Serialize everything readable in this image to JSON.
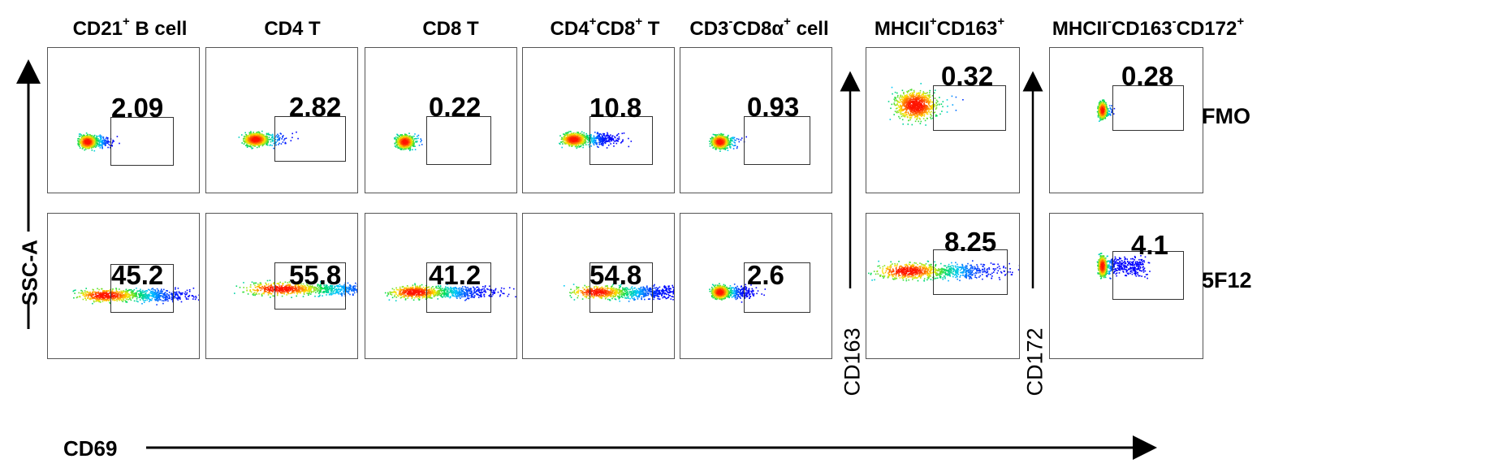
{
  "chart_data": {
    "type": "flow-cytometry-grid",
    "x_axis_label": "CD69",
    "y_axis_label": "SSC-A",
    "panel_y_axis_labels": [
      "CD163",
      "CD172"
    ],
    "columns": [
      {
        "name": "CD21⁺ B cell",
        "base": "CD21",
        "sup": "+",
        "tail": " B cell"
      },
      {
        "name": "CD4 T",
        "base": "CD4 T",
        "sup": "",
        "tail": ""
      },
      {
        "name": "CD8 T",
        "base": "CD8 T",
        "sup": "",
        "tail": ""
      },
      {
        "name": "CD4⁺CD8⁺ T",
        "base": "CD4",
        "sup": "+",
        "tail": "CD8",
        "sup2": "+",
        "tail2": " T"
      },
      {
        "name": "CD3⁻CD8α⁺ cell",
        "base": "CD3",
        "sup": "-",
        "tail": "CD8α",
        "sup2": "+",
        "tail2": " cell"
      },
      {
        "name": "MHCII⁺CD163⁺",
        "base": "MHCII",
        "sup": "+",
        "tail": "CD163",
        "sup2": "+",
        "tail2": ""
      },
      {
        "name": "MHCII⁻CD163⁻CD172⁺",
        "base": "MHCII",
        "sup": "-",
        "tail": "CD163",
        "sup2": "-",
        "tail2": "CD172",
        "sup3": "+"
      }
    ],
    "rows": [
      "FMO",
      "5F12"
    ],
    "values": [
      [
        "2.09",
        "2.82",
        "0.22",
        "10.8",
        "0.93",
        "0.32",
        "0.28"
      ],
      [
        "45.2",
        "55.8",
        "41.2",
        "54.8",
        "2.6",
        "8.25",
        "4.1"
      ]
    ]
  }
}
